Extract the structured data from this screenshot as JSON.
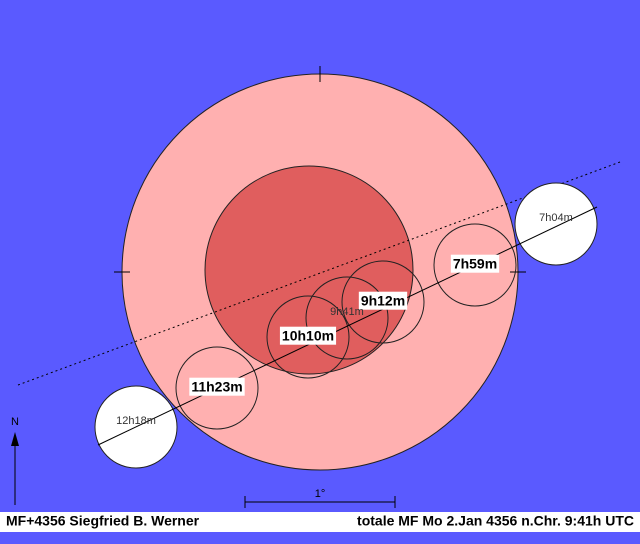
{
  "diagram": {
    "north": "N",
    "scale": "1°",
    "moons": [
      {
        "label": "7h04m"
      },
      {
        "label": "7h59m"
      },
      {
        "label": "9h12m"
      },
      {
        "label": "9h41m"
      },
      {
        "label": "10h10m"
      },
      {
        "label": "11h23m"
      },
      {
        "label": "12h18m"
      }
    ]
  },
  "footer": {
    "left": "MF+4356  Siegfried B. Werner",
    "right": "totale MF  Mo 2.Jan 4356 n.Chr.  9:41h UTC"
  }
}
